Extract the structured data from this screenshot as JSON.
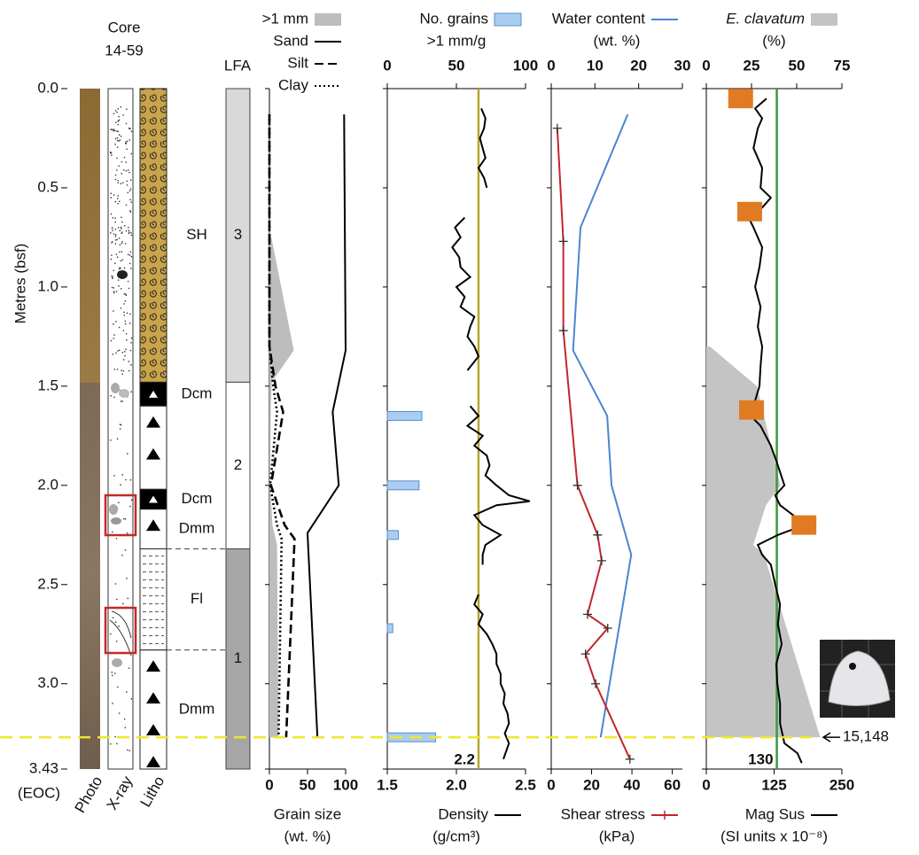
{
  "chart_data": [
    {
      "type": "core",
      "title": [
        "Core",
        "14-59"
      ],
      "ylabel": "Metres (bsf)",
      "ylim": [
        0,
        3.43
      ],
      "yticks": [
        {
          "value": 0,
          "label": "0.0"
        },
        {
          "value": 0.5,
          "label": "0.5"
        },
        {
          "value": 1,
          "label": "1.0"
        },
        {
          "value": 1.5,
          "label": "1.5"
        },
        {
          "value": 2,
          "label": "2.0"
        },
        {
          "value": 2.5,
          "label": "2.5"
        },
        {
          "value": 3,
          "label": "3.0"
        },
        3.43
      ],
      "end_label": "(EOC)",
      "columns": [
        "Photo",
        "X-ray",
        "Litho"
      ],
      "lfa_title": "LFA",
      "lfa": [
        {
          "label": "3",
          "top": 0,
          "bottom": 1.48,
          "color": "#d9d9d9"
        },
        {
          "label": "2",
          "top": 1.48,
          "bottom": 2.32,
          "color": "#ffffff"
        },
        {
          "label": "1",
          "top": 2.32,
          "bottom": 3.43,
          "color": "#a6a6a6"
        }
      ],
      "facies": [
        {
          "label": "SH",
          "top": 0,
          "bottom": 1.48,
          "pattern": "swirl"
        },
        {
          "label": "Dcm",
          "top": 1.48,
          "bottom": 1.6,
          "pattern": "solid"
        },
        {
          "top": 1.6,
          "bottom": 2.02,
          "pattern": "triangle"
        },
        {
          "label": "Dcm",
          "top": 2.02,
          "bottom": 2.12,
          "pattern": "solid"
        },
        {
          "label": "Dmm",
          "top": 2.12,
          "bottom": 2.32,
          "pattern": "triangle"
        },
        {
          "label": "Fl",
          "top": 2.32,
          "bottom": 2.83,
          "pattern": "lines"
        },
        {
          "label": "Dmm",
          "top": 2.83,
          "bottom": 3.43,
          "pattern": "triangle"
        }
      ],
      "horizon": {
        "depth": 3.27,
        "label": "15,148",
        "color": "#f0e62a"
      }
    },
    {
      "type": "profile",
      "xlim": [
        0,
        100
      ],
      "xticks": [
        0,
        50,
        100
      ],
      "xlabel": [
        "Grain size",
        "(wt. %)"
      ],
      "series": [
        {
          "name": ">1 mm",
          "kind": "area",
          "color": "#bdbdbd",
          "legend": "top",
          "depth": [
            0.7,
            1.32,
            1.48,
            1.6,
            2.0,
            2.2,
            2.3,
            3.27
          ],
          "values": [
            0,
            32,
            3,
            2,
            1,
            4,
            10,
            12
          ]
        },
        {
          "name": "Sand",
          "kind": "line",
          "style": "solid",
          "color": "#000000",
          "legend": "top",
          "depth": [
            0.13,
            1.32,
            1.63,
            2.0,
            2.24,
            3.27
          ],
          "values": [
            98,
            100,
            83,
            91,
            50,
            63
          ]
        },
        {
          "name": "Silt",
          "kind": "line",
          "style": "dashed",
          "color": "#000000",
          "legend": "top",
          "depth": [
            0.13,
            1.3,
            1.5,
            1.63,
            2.0,
            2.2,
            2.27,
            3.27
          ],
          "values": [
            0,
            0,
            8,
            18,
            2,
            20,
            33,
            22
          ]
        },
        {
          "name": "Clay",
          "kind": "line",
          "style": "dotted",
          "color": "#000000",
          "legend": "top",
          "depth": [
            0.13,
            1.3,
            1.5,
            1.63,
            2.0,
            2.2,
            2.27,
            3.27
          ],
          "values": [
            0,
            0,
            5,
            10,
            1,
            10,
            16,
            12
          ]
        }
      ]
    },
    {
      "type": "profile",
      "xlim": [
        1.5,
        2.5
      ],
      "xticks": [
        1.5,
        {
          "value": 2,
          "label": "2.0"
        },
        2.5
      ],
      "xlabel": [
        "(g/cm³)"
      ],
      "x2lim": [
        0,
        100
      ],
      "x2ticks": [
        0,
        50,
        100
      ],
      "x2label": ">1 mm/g",
      "reference": {
        "value": 2.16,
        "label": "2.2"
      },
      "reference_color": "#b5a530",
      "series": [
        {
          "name": "No. grains",
          "kind": "bars",
          "axis": "x2",
          "color": "#a9cdf0",
          "legend": "top",
          "depth": [
            1.65,
            2.0,
            2.25,
            2.72,
            3.27
          ],
          "values": [
            25,
            23,
            8,
            4,
            35
          ]
        },
        {
          "name": "Density",
          "kind": "line",
          "style": "solid",
          "color": "#000000",
          "legend": "bottom",
          "depth": [
            0.1,
            0.15,
            0.2,
            0.25,
            0.3,
            0.35,
            0.4,
            0.45,
            0.5,
            0.57,
            0.65,
            0.7,
            0.75,
            0.8,
            0.85,
            0.9,
            0.95,
            1.0,
            1.05,
            1.1,
            1.15,
            1.2,
            1.25,
            1.3,
            1.35,
            1.42,
            1.5,
            1.6,
            1.65,
            1.7,
            1.75,
            1.8,
            1.85,
            1.9,
            1.95,
            2.0,
            2.05,
            2.08,
            2.1,
            2.15,
            2.2,
            2.25,
            2.3,
            2.35,
            2.4,
            2.48,
            2.55,
            2.6,
            2.65,
            2.7,
            2.75,
            2.8,
            2.85,
            2.9,
            2.95,
            3.0,
            3.05,
            3.1,
            3.15,
            3.2,
            3.25,
            3.3,
            3.38
          ],
          "values": [
            2.18,
            2.21,
            2.2,
            2.17,
            2.19,
            2.21,
            2.16,
            2.2,
            2.22,
            null,
            2.06,
            1.99,
            2.03,
            1.97,
            2.02,
            2.03,
            2.1,
            2.0,
            2.06,
            2.03,
            2.13,
            2.1,
            2.08,
            2.13,
            2.16,
            2.08,
            null,
            2.1,
            2.16,
            2.08,
            2.19,
            2.13,
            2.22,
            2.24,
            2.21,
            2.29,
            2.38,
            2.53,
            2.29,
            2.13,
            2.19,
            2.32,
            2.21,
            2.19,
            2.19,
            null,
            2.16,
            2.13,
            2.19,
            2.16,
            2.22,
            2.26,
            2.29,
            2.29,
            2.32,
            2.32,
            2.35,
            2.34,
            2.37,
            2.38,
            2.35,
            2.38,
            2.34
          ]
        }
      ]
    },
    {
      "type": "profile",
      "xlim": [
        0,
        65
      ],
      "xticks": [
        0,
        20,
        40,
        60
      ],
      "xlabel": [
        "(kPa)"
      ],
      "x2lim": [
        0,
        30
      ],
      "x2ticks": [
        0,
        10,
        20,
        30
      ],
      "x2label": "(wt. %)",
      "series": [
        {
          "name": "Water content",
          "kind": "line",
          "style": "solid",
          "axis": "x2",
          "color": "#4a86d0",
          "legend": "top",
          "depth": [
            0.13,
            0.7,
            1.32,
            1.65,
            2.0,
            2.35,
            3.27
          ],
          "values": [
            17.5,
            6.7,
            5,
            12.8,
            13.8,
            18.3,
            11.3
          ]
        },
        {
          "name": "Shear stress",
          "kind": "line",
          "style": "solid",
          "marker": "plus",
          "color": "#c0272d",
          "legend": "bottom",
          "depth": [
            0.2,
            0.77,
            1.22,
            2.0,
            2.25,
            2.38,
            2.65,
            2.72,
            2.85,
            3.0,
            3.38
          ],
          "values": [
            3,
            6,
            6,
            13,
            23,
            25,
            18,
            28,
            17,
            22,
            39
          ]
        }
      ]
    },
    {
      "type": "profile",
      "xlim": [
        0,
        250
      ],
      "xticks": [
        0,
        125,
        250
      ],
      "xlabel": [
        "(SI units x 10⁻⁸)"
      ],
      "x2lim": [
        0,
        75
      ],
      "x2ticks": [
        0,
        25,
        50,
        75
      ],
      "x2label": "(%)",
      "reference": 130,
      "reference_color": "#3a9a3a",
      "series": [
        {
          "name": "E. clavatum",
          "font_style": "italic",
          "kind": "area",
          "axis": "x2",
          "color": "#c4c4c4",
          "legend": "top",
          "depth": [
            1.3,
            1.5,
            2.0,
            2.1,
            2.3,
            2.35,
            3.27
          ],
          "values": [
            2,
            28,
            41,
            33,
            26,
            32,
            63
          ]
        },
        {
          "kind": "points",
          "marker": "square",
          "axis": "x2",
          "color": "#e07b24",
          "depth": [
            0.05,
            0.62,
            1.62,
            2.2
          ],
          "values": [
            19,
            24,
            25,
            54
          ]
        },
        {
          "name": "Mag Sus",
          "kind": "line",
          "style": "solid",
          "color": "#000000",
          "legend": "bottom",
          "depth": [
            0.05,
            0.1,
            0.15,
            0.2,
            0.3,
            0.4,
            0.5,
            0.55,
            0.6,
            0.65,
            0.7,
            0.8,
            0.9,
            1.0,
            1.1,
            1.2,
            1.3,
            1.4,
            1.5,
            1.6,
            1.65,
            1.7,
            1.8,
            1.9,
            2.0,
            2.05,
            2.1,
            2.15,
            2.2,
            2.25,
            2.3,
            2.35,
            2.4,
            2.5,
            2.6,
            2.7,
            2.8,
            2.9,
            3.0,
            3.1,
            3.2,
            3.3,
            3.35,
            3.4
          ],
          "values": [
            111,
            90,
            103,
            95,
            87,
            103,
            100,
            119,
            103,
            78,
            87,
            103,
            98,
            90,
            100,
            95,
            103,
            100,
            98,
            87,
            82,
            100,
            119,
            132,
            144,
            127,
            136,
            160,
            181,
            132,
            95,
            103,
            119,
            127,
            136,
            132,
            139,
            129,
            131,
            136,
            136,
            144,
            168,
            176
          ]
        }
      ]
    }
  ]
}
